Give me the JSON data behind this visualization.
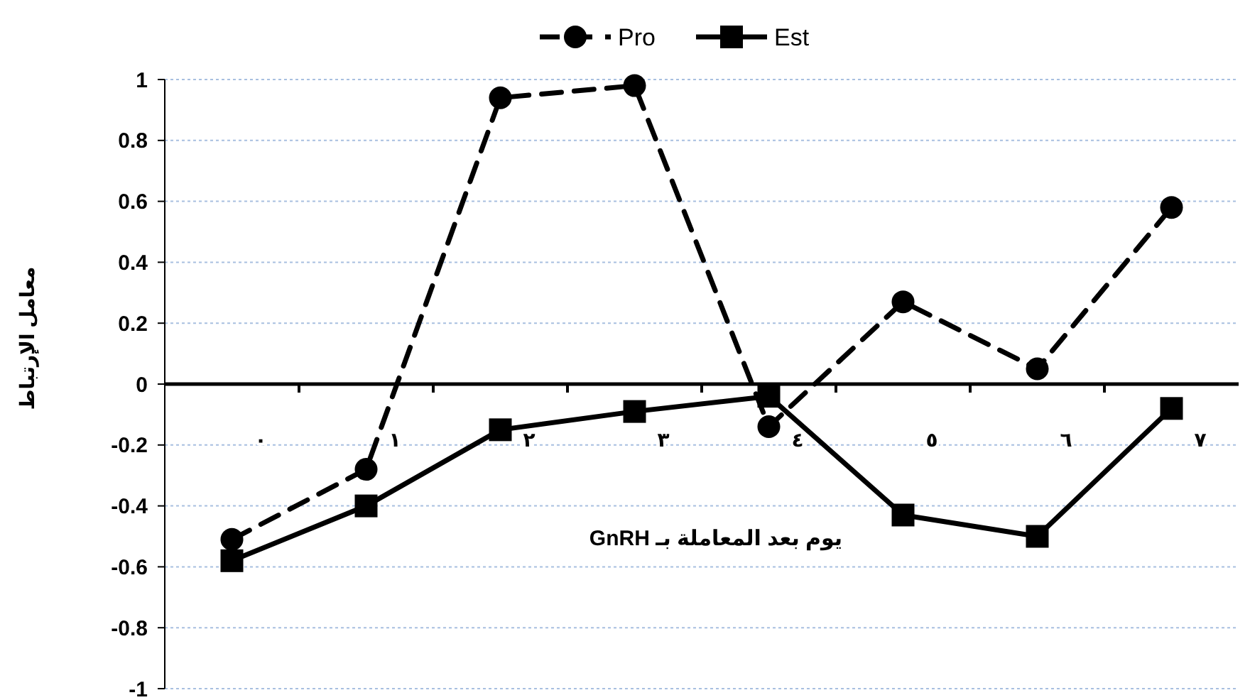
{
  "chart_data": {
    "type": "line",
    "xlabel": "يوم بعد المعاملة بـ GnRH",
    "ylabel": "معامل الإرتباط",
    "categories": [
      "٠",
      "١",
      "٢",
      "٣",
      "٤",
      "٥",
      "٦",
      "٧"
    ],
    "series": [
      {
        "name": "Pro",
        "color": "#000000",
        "line_style": "dashed",
        "marker": "circle",
        "values": [
          -0.51,
          -0.28,
          0.94,
          0.98,
          -0.14,
          0.27,
          0.05,
          0.58
        ]
      },
      {
        "name": "Est",
        "color": "#000000",
        "line_style": "solid",
        "marker": "square",
        "values": [
          -0.58,
          -0.4,
          -0.15,
          -0.09,
          -0.04,
          -0.43,
          -0.5,
          -0.08
        ]
      }
    ],
    "ylim": [
      -1,
      1
    ],
    "yticks": [
      -1,
      -0.8,
      -0.6,
      -0.4,
      -0.2,
      0,
      0.2,
      0.4,
      0.6,
      0.8,
      1
    ],
    "grid": "y",
    "legend": "top"
  }
}
